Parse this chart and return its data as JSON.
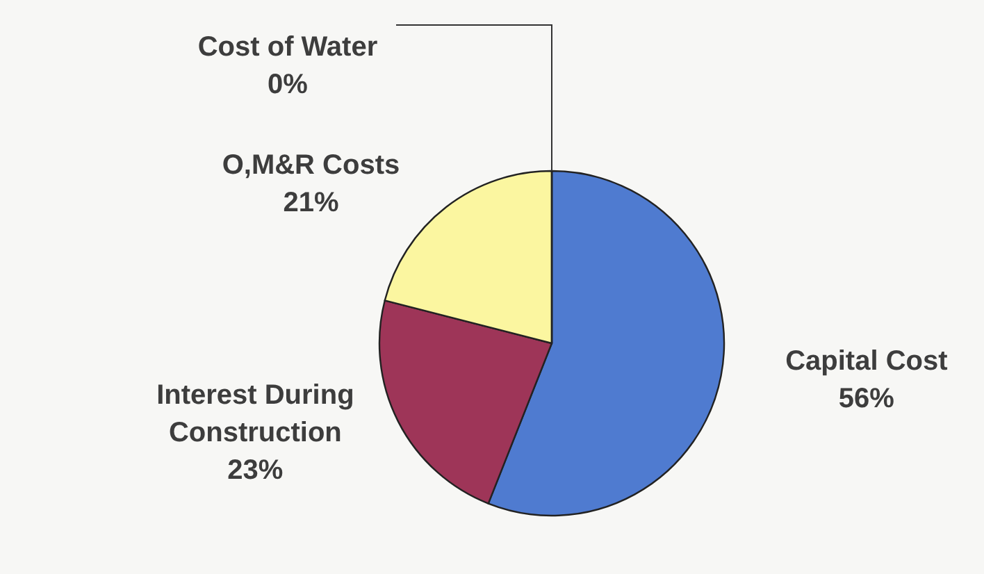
{
  "chart_data": {
    "type": "pie",
    "categories": [
      "Capital Cost",
      "Interest During Construction",
      "O,M&R Costs",
      "Cost of Water"
    ],
    "values": [
      56,
      23,
      21,
      0
    ],
    "value_labels": [
      "56%",
      "23%",
      "21%",
      "0%"
    ],
    "colors": [
      "#4f7bd0",
      "#9e3558",
      "#fbf6a0",
      "#9fd0e8"
    ]
  }
}
